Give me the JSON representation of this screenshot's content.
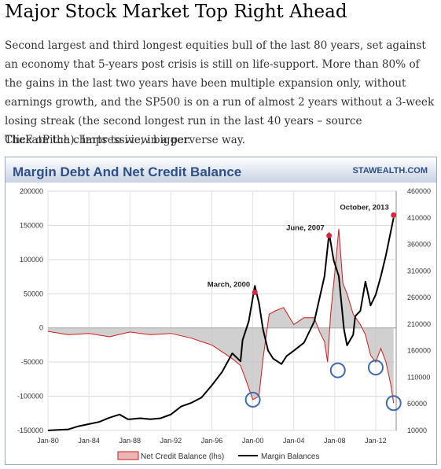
{
  "post": {
    "title": "Major Stock Market Top Right Ahead",
    "body": "Second largest and third longest equities bull of the last 80 years, set against an economy that 5-years post crisis is still on life-support. More than 80% of the gains in the last two years have been multiple expansion only, without earnings growth, and the SP500 is on a run of almost 2 years without a 3-week losing streak (the second longest run in the last 40 years – source TheFatPitch).  Impressive, in a perverse way.",
    "note": "Click on the charts to view bigger."
  },
  "colors": {
    "header_gradient_top": "#ffffff",
    "header_gradient_bottom": "#c7d2e2",
    "title_blue": "#2e4f8a",
    "credit_fill": "#c0c0c0",
    "credit_line": "#d01a1a",
    "margin_line": "#000000",
    "marker": "#d7263d",
    "circle": "#3c6bb0"
  },
  "chart_data": {
    "type": "line",
    "title": "Margin Debt And Net Credit Balance",
    "source": "STAWEALTH.COM",
    "x_ticks": [
      "Jan-80",
      "Jan-84",
      "Jan-88",
      "Jan-92",
      "Jan-96",
      "Jan-00",
      "Jan-04",
      "Jan-08",
      "Jan-12"
    ],
    "x_range": [
      1980,
      2014
    ],
    "left_axis": {
      "ticks": [
        "200000",
        "150000",
        "100000",
        "50000",
        "0",
        "-50000",
        "-100000",
        "-150000"
      ],
      "range": [
        -150000,
        200000
      ]
    },
    "right_axis": {
      "ticks": [
        "460000",
        "410000",
        "360000",
        "310000",
        "260000",
        "210000",
        "160000",
        "110000",
        "60000",
        "10000"
      ],
      "range": [
        10000,
        460000
      ]
    },
    "legend": [
      "Net Credit Balance (lhs)",
      "Margin Balances"
    ],
    "annotations": [
      {
        "label": "March, 2000",
        "x": 2000.2,
        "y": 52000
      },
      {
        "label": "June, 2007",
        "x": 2007.45,
        "y": 135000
      },
      {
        "label": "October, 2013",
        "x": 2013.75,
        "y": 165000
      }
    ],
    "series": [
      {
        "name": "Margin Balances",
        "axis": "right",
        "x": [
          1980,
          1981,
          1982,
          1983,
          1984,
          1985,
          1986,
          1987,
          1987.8,
          1988,
          1989,
          1990,
          1991,
          1992,
          1993,
          1994,
          1995,
          1996,
          1997,
          1998,
          1998.8,
          1999,
          1999.6,
          2000.2,
          2000.6,
          2001,
          2001.5,
          2002,
          2002.8,
          2003.3,
          2004,
          2005,
          2006,
          2007,
          2007.45,
          2007.9,
          2008.4,
          2008.9,
          2009.2,
          2009.8,
          2010,
          2010.5,
          2011,
          2011.5,
          2012,
          2012.5,
          2013,
          2013.75
        ],
        "y": [
          10000,
          11000,
          12000,
          18000,
          22000,
          26000,
          34000,
          40000,
          31000,
          31000,
          33000,
          31000,
          33000,
          40000,
          55000,
          62000,
          72000,
          95000,
          120000,
          155000,
          140000,
          180000,
          215000,
          282000,
          250000,
          200000,
          160000,
          145000,
          135000,
          150000,
          160000,
          175000,
          215000,
          300000,
          381000,
          330000,
          300000,
          200000,
          170000,
          190000,
          225000,
          235000,
          290000,
          245000,
          265000,
          300000,
          340000,
          410000
        ]
      },
      {
        "name": "Net Credit Balance (lhs)",
        "axis": "left",
        "x": [
          1980,
          1982,
          1984,
          1986,
          1988,
          1990,
          1992,
          1994,
          1995,
          1996,
          1997,
          1998,
          1998.8,
          1999.3,
          2000,
          2000.6,
          2001,
          2001.6,
          2002.2,
          2003,
          2004,
          2005,
          2006,
          2006.5,
          2007,
          2007.3,
          2007.6,
          2008,
          2008.4,
          2008.8,
          2009.2,
          2009.8,
          2010.5,
          2011,
          2011.5,
          2012,
          2012.5,
          2013,
          2013.5,
          2013.75
        ],
        "y": [
          -5000,
          -10000,
          -8000,
          -13000,
          -6000,
          -10000,
          -8000,
          -15000,
          -20000,
          -25000,
          -35000,
          -45000,
          -55000,
          -75000,
          -105000,
          -100000,
          -45000,
          20000,
          25000,
          30000,
          5000,
          15000,
          15000,
          -5000,
          -20000,
          -50000,
          20000,
          80000,
          145000,
          65000,
          50000,
          20000,
          5000,
          -10000,
          -40000,
          -50000,
          -30000,
          -50000,
          -85000,
          -110000
        ]
      }
    ]
  }
}
